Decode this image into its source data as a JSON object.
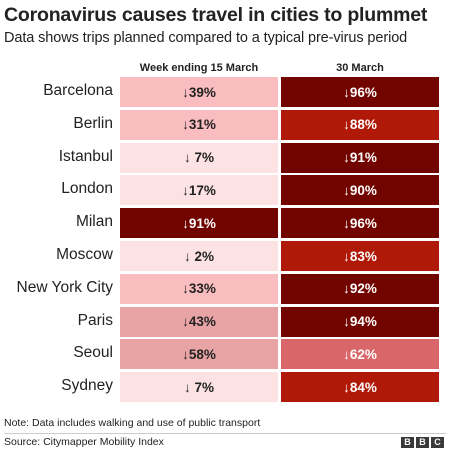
{
  "title": "Coronavirus causes travel in cities to plummet",
  "subtitle": "Data shows trips planned compared to a typical pre-virus period",
  "chart_data": {
    "type": "heatmap",
    "columns": [
      "Week ending 15 March",
      "30 March"
    ],
    "rows": [
      {
        "city": "Barcelona",
        "values": [
          "↓39%",
          "↓96%"
        ]
      },
      {
        "city": "Berlin",
        "values": [
          "↓31%",
          "↓88%"
        ]
      },
      {
        "city": "Istanbul",
        "values": [
          "↓ 7%",
          "↓91%"
        ]
      },
      {
        "city": "London",
        "values": [
          "↓17%",
          "↓90%"
        ]
      },
      {
        "city": "Milan",
        "values": [
          "↓91%",
          "↓96%"
        ]
      },
      {
        "city": "Moscow",
        "values": [
          "↓ 2%",
          "↓83%"
        ]
      },
      {
        "city": "New York City",
        "values": [
          "↓33%",
          "↓92%"
        ]
      },
      {
        "city": "Paris",
        "values": [
          "↓43%",
          "↓94%"
        ]
      },
      {
        "city": "Seoul",
        "values": [
          "↓58%",
          "↓62%"
        ]
      },
      {
        "city": "Sydney",
        "values": [
          "↓ 7%",
          "↓84%"
        ]
      }
    ],
    "colors": {
      "0-20": "#fce2e3",
      "20-40": "#f9bcbf",
      "40-60": "#e8a3a5",
      "60-80": "#d96769",
      "80-90": "#b01807",
      "90-100": "#720400"
    }
  },
  "footnote": "Note: Data includes walking and use of public transport",
  "source": "Source: Citymapper Mobility Index",
  "logo": [
    "B",
    "B",
    "C"
  ]
}
